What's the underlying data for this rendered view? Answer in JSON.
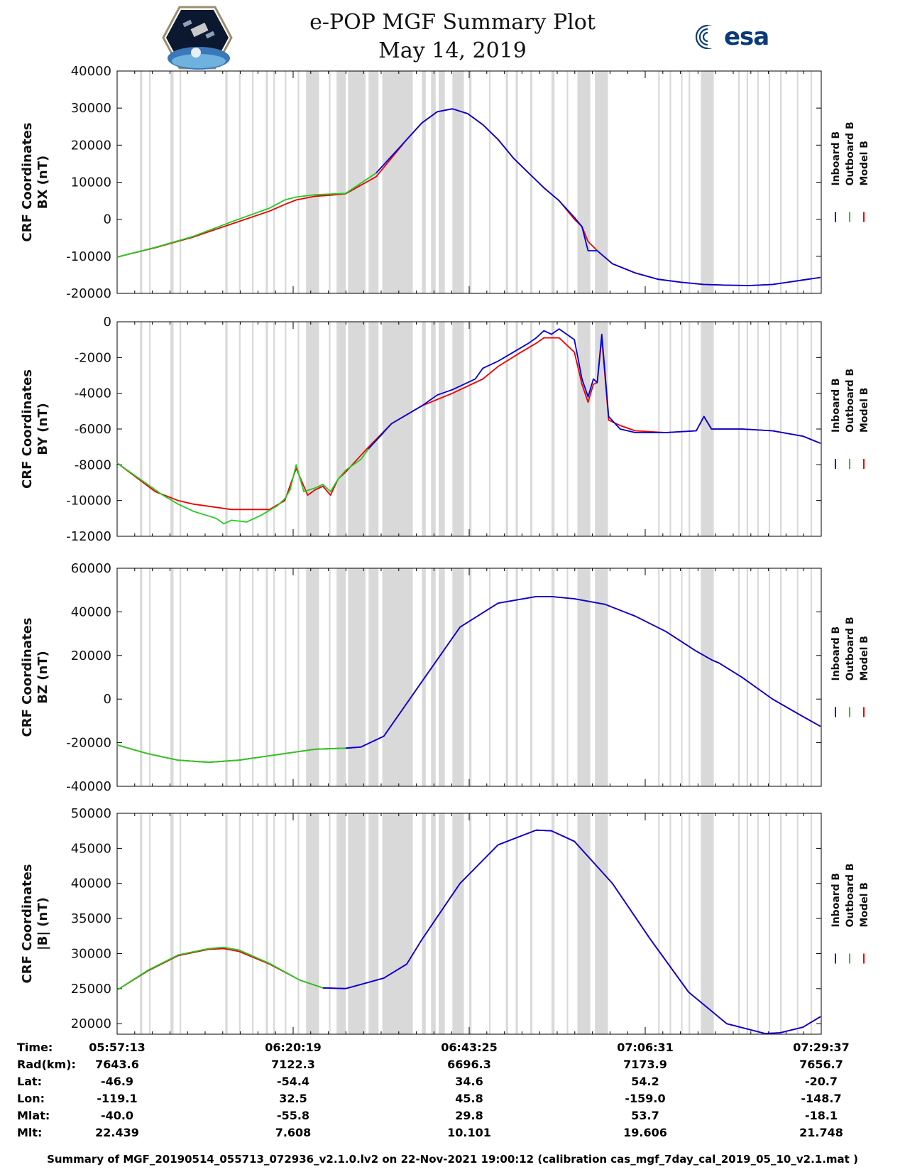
{
  "header": {
    "title": "e-POP MGF Summary Plot",
    "date": "May 14, 2019",
    "left_logo": "cassiope-mission-logo",
    "right_logo_text": "esa"
  },
  "colors": {
    "inboard": "#0000dd",
    "outboard": "#22cc22",
    "model": "#ee0000",
    "gap": "#d9d9d9"
  },
  "chart_data": [
    {
      "type": "line",
      "name": "BX",
      "ylabel_line1": "CRF Coordinates",
      "ylabel_line2": "BX (nT)",
      "ylim": [
        -20000,
        40000
      ],
      "yticks": [
        -20000,
        -10000,
        0,
        10000,
        20000,
        30000,
        40000
      ],
      "legend": [
        "Inboard B",
        "Outboard B",
        "Model B"
      ],
      "series": [
        {
          "name": "Model B",
          "color": "red",
          "x": [
            0,
            5,
            10,
            15,
            20,
            22,
            23.5,
            26,
            28,
            30,
            34,
            38,
            40,
            42,
            44,
            46,
            48,
            50,
            52,
            54,
            56,
            58,
            60,
            61,
            61.8,
            63,
            65,
            68,
            71,
            74,
            77,
            80,
            83,
            86,
            88,
            90,
            92.3
          ],
          "y": [
            -10200,
            -7700,
            -4800,
            -1300,
            2200,
            4000,
            5200,
            6200,
            6500,
            6900,
            11500,
            21500,
            26000,
            29000,
            29800,
            28500,
            25500,
            21500,
            16500,
            12500,
            8500,
            5000,
            0,
            -2000,
            -6000,
            -8500,
            -12000,
            -14500,
            -16200,
            -17000,
            -17600,
            -17800,
            -17900,
            -17600,
            -17000,
            -16400,
            -15700
          ]
        },
        {
          "name": "Outboard B",
          "color": "green",
          "x": [
            0,
            5,
            10,
            15,
            20,
            22,
            23.5,
            26,
            28,
            30,
            34
          ],
          "y": [
            -10200,
            -7600,
            -4600,
            -700,
            3000,
            5200,
            6000,
            6600,
            6800,
            7000,
            12500
          ]
        },
        {
          "name": "Inboard B",
          "color": "blue",
          "x": [
            34,
            38,
            40,
            42,
            44,
            46,
            48,
            50,
            52,
            54,
            56,
            58,
            60,
            61,
            61.8,
            63,
            65,
            68,
            71,
            74,
            77,
            80,
            83,
            86,
            88,
            90,
            92.3
          ],
          "y": [
            12500,
            21500,
            26000,
            29000,
            29800,
            28500,
            25500,
            21500,
            16500,
            12500,
            8500,
            5000,
            500,
            -2000,
            -8500,
            -8500,
            -12000,
            -14500,
            -16200,
            -17000,
            -17600,
            -17800,
            -17900,
            -17600,
            -17000,
            -16400,
            -15700
          ]
        }
      ]
    },
    {
      "type": "line",
      "name": "BY",
      "ylabel_line1": "CRF Coordinates",
      "ylabel_line2": "BY (nT)",
      "ylim": [
        -12000,
        0
      ],
      "yticks": [
        -12000,
        -10000,
        -8000,
        -6000,
        -4000,
        -2000,
        0
      ],
      "legend": [
        "Inboard B",
        "Outboard B",
        "Model B"
      ],
      "series": [
        {
          "name": "Model B",
          "color": "red",
          "x": [
            0,
            5,
            8,
            10,
            15,
            20,
            22,
            23.5,
            25,
            26,
            27,
            28,
            29,
            30,
            33,
            36,
            40,
            44,
            48,
            50,
            53,
            55,
            56,
            58,
            60,
            61,
            61.8,
            62.5,
            63,
            63.6,
            64.5,
            66,
            68,
            72,
            76,
            77,
            78,
            79,
            82,
            86,
            90,
            92.3
          ],
          "y": [
            -7900,
            -9500,
            -10000,
            -10200,
            -10500,
            -10500,
            -10000,
            -8200,
            -9700,
            -9400,
            -9200,
            -9700,
            -8800,
            -8400,
            -7000,
            -5700,
            -4700,
            -4000,
            -3200,
            -2500,
            -1700,
            -1200,
            -900,
            -900,
            -1700,
            -3500,
            -4500,
            -3500,
            -3400,
            -900,
            -5500,
            -5800,
            -6100,
            -6200,
            -6100,
            -5300,
            -6000,
            -6000,
            -6000,
            -6100,
            -6400,
            -6800
          ]
        },
        {
          "name": "Outboard B",
          "color": "green",
          "x": [
            0,
            3,
            6,
            8,
            10,
            13,
            14,
            15,
            17,
            19,
            21,
            22,
            22.7,
            23.5,
            24.5,
            26,
            27,
            28,
            29,
            30,
            32,
            33,
            35
          ],
          "y": [
            -7900,
            -8800,
            -9700,
            -10200,
            -10600,
            -11000,
            -11300,
            -11100,
            -11200,
            -10800,
            -10300,
            -9900,
            -9400,
            -8000,
            -9500,
            -9300,
            -9100,
            -9500,
            -8800,
            -8300,
            -7700,
            -7100,
            -6200
          ]
        },
        {
          "name": "Inboard B",
          "color": "blue",
          "x": [
            33,
            36,
            40,
            42,
            44,
            46,
            47,
            48,
            50,
            52,
            54,
            55,
            56,
            57,
            58,
            59,
            60,
            61,
            61.8,
            62.5,
            63,
            63.6,
            64.5,
            66,
            68,
            72,
            76,
            77,
            78,
            79,
            82,
            86,
            90,
            92.3
          ],
          "y": [
            -7100,
            -5700,
            -4700,
            -4100,
            -3800,
            -3400,
            -3200,
            -2600,
            -2200,
            -1700,
            -1200,
            -900,
            -500,
            -700,
            -400,
            -700,
            -1000,
            -3200,
            -4200,
            -3200,
            -3400,
            -700,
            -5300,
            -6000,
            -6200,
            -6200,
            -6100,
            -5300,
            -6000,
            -6000,
            -6000,
            -6100,
            -6400,
            -6800
          ]
        }
      ]
    },
    {
      "type": "line",
      "name": "BZ",
      "ylabel_line1": "CRF Coordinates",
      "ylabel_line2": "BZ (nT)",
      "ylim": [
        -40000,
        60000
      ],
      "yticks": [
        -40000,
        -20000,
        0,
        20000,
        40000,
        60000
      ],
      "legend": [
        "Inboard B",
        "Outboard B",
        "Model B"
      ],
      "series": [
        {
          "name": "Model B",
          "color": "red",
          "x": [
            0,
            4,
            8,
            12,
            16,
            20,
            23,
            26,
            30,
            32,
            35,
            40,
            45,
            50,
            55,
            57,
            60,
            64,
            68,
            72,
            76,
            78,
            79,
            82,
            86,
            90,
            92.3
          ],
          "y": [
            -21000,
            -25000,
            -28000,
            -29000,
            -28000,
            -26000,
            -24500,
            -23000,
            -22500,
            -22000,
            -17000,
            8000,
            33000,
            44000,
            47000,
            47000,
            46000,
            43500,
            38000,
            31000,
            22000,
            18000,
            16500,
            10000,
            0,
            -8000,
            -12500
          ]
        },
        {
          "name": "Outboard B",
          "color": "green",
          "x": [
            0,
            4,
            8,
            12,
            16,
            20,
            23,
            26,
            30
          ],
          "y": [
            -21000,
            -25000,
            -28000,
            -29000,
            -28000,
            -26000,
            -24500,
            -23000,
            -22500
          ]
        },
        {
          "name": "Inboard B",
          "color": "blue",
          "x": [
            30,
            32,
            35,
            40,
            45,
            50,
            55,
            57,
            60,
            64,
            68,
            72,
            76,
            78,
            79,
            82,
            86,
            90,
            92.3
          ],
          "y": [
            -22500,
            -22000,
            -17000,
            8000,
            33000,
            44000,
            47000,
            47000,
            46000,
            43500,
            38000,
            31000,
            22000,
            18000,
            16500,
            10000,
            0,
            -8000,
            -12500
          ]
        }
      ]
    },
    {
      "type": "line",
      "name": "|B|",
      "ylabel_line1": "CRF Coordinates",
      "ylabel_line2": "|B| (nT)",
      "ylim": [
        18500,
        50000
      ],
      "yticks": [
        20000,
        25000,
        30000,
        35000,
        40000,
        45000,
        50000
      ],
      "legend": [
        "Inboard B",
        "Outboard B",
        "Model B"
      ],
      "series": [
        {
          "name": "Model B",
          "color": "red",
          "x": [
            0,
            4,
            8,
            12,
            14,
            16,
            20,
            24,
            27,
            30,
            35,
            38,
            40,
            45,
            50,
            55,
            57,
            60,
            65,
            70,
            75,
            80,
            85,
            87,
            90,
            92.3
          ],
          "y": [
            24800,
            27500,
            29700,
            30600,
            30700,
            30300,
            28500,
            26200,
            25100,
            25000,
            26500,
            28500,
            32000,
            40000,
            45500,
            47600,
            47500,
            46000,
            40000,
            32000,
            24500,
            20000,
            18600,
            18700,
            19500,
            21000
          ]
        },
        {
          "name": "Outboard B",
          "color": "green",
          "x": [
            0,
            4,
            8,
            12,
            14,
            16,
            20,
            24,
            27
          ],
          "y": [
            24800,
            27600,
            29800,
            30700,
            30900,
            30500,
            28600,
            26200,
            25100
          ]
        },
        {
          "name": "Inboard B",
          "color": "blue",
          "x": [
            27,
            30,
            35,
            38,
            40,
            45,
            50,
            55,
            57,
            60,
            65,
            70,
            75,
            80,
            85,
            87,
            90,
            92.3
          ],
          "y": [
            25100,
            25000,
            26500,
            28500,
            32000,
            40000,
            45500,
            47600,
            47500,
            46000,
            40000,
            32000,
            24500,
            20000,
            18600,
            18700,
            19500,
            21000
          ]
        }
      ]
    }
  ],
  "x_axis": {
    "units": "minutes since 05:57:13",
    "range": [
      0,
      92.4
    ],
    "major_ticks": [
      0,
      23.1,
      46.2,
      69.3,
      92.4
    ]
  },
  "gap_bands": [
    [
      3.0,
      3.3
    ],
    [
      4.2,
      4.4
    ],
    [
      7.0,
      7.4
    ],
    [
      8.2,
      8.4
    ],
    [
      14.2,
      14.5
    ],
    [
      16.0,
      16.2
    ],
    [
      17.7,
      17.9
    ],
    [
      19.5,
      19.8
    ],
    [
      20.5,
      20.7
    ],
    [
      22.0,
      22.2
    ],
    [
      23.7,
      23.9
    ],
    [
      24.8,
      26.5
    ],
    [
      27.8,
      28.0
    ],
    [
      28.8,
      30.0
    ],
    [
      30.3,
      32.6
    ],
    [
      33.0,
      34.3
    ],
    [
      34.8,
      38.8
    ],
    [
      40.0,
      40.5
    ],
    [
      41.2,
      41.8
    ],
    [
      42.2,
      43.0
    ],
    [
      44.0,
      45.5
    ],
    [
      46.2,
      46.5
    ],
    [
      48.8,
      49.0
    ],
    [
      51.0,
      51.3
    ],
    [
      52.3,
      52.6
    ],
    [
      54.2,
      54.5
    ],
    [
      57.0,
      57.4
    ],
    [
      59.0,
      59.2
    ],
    [
      60.4,
      62.1
    ],
    [
      62.7,
      64.4
    ],
    [
      71.0,
      71.2
    ],
    [
      72.5,
      72.7
    ],
    [
      74.0,
      74.2
    ],
    [
      75.0,
      75.2
    ],
    [
      76.6,
      78.3
    ],
    [
      81.5,
      81.7
    ],
    [
      82.6,
      82.8
    ],
    [
      84.0,
      84.2
    ],
    [
      85.5,
      85.7
    ],
    [
      87.0,
      87.2
    ],
    [
      89.2,
      89.4
    ],
    [
      91.0,
      91.2
    ]
  ],
  "ephemeris": {
    "labels": [
      "Time:",
      "Rad(km):",
      "Lat:",
      "Lon:",
      "Mlat:",
      "Mlt:"
    ],
    "columns": [
      [
        "05:57:13",
        "7643.6",
        "-46.9",
        "-119.1",
        "-40.0",
        "22.439"
      ],
      [
        "06:20:19",
        "7122.3",
        "-54.4",
        "32.5",
        "-55.8",
        "7.608"
      ],
      [
        "06:43:25",
        "6696.3",
        "34.6",
        "45.8",
        "29.8",
        "10.101"
      ],
      [
        "07:06:31",
        "7173.9",
        "54.2",
        "-159.0",
        "53.7",
        "19.606"
      ],
      [
        "07:29:37",
        "7656.7",
        "-20.7",
        "-148.7",
        "-18.1",
        "21.748"
      ]
    ]
  },
  "footer": "Summary of MGF_20190514_055713_072936_v2.1.0.lv2 on 22-Nov-2021 19:00:12 (calibration cas_mgf_7day_cal_2019_05_10_v2.1.mat )"
}
